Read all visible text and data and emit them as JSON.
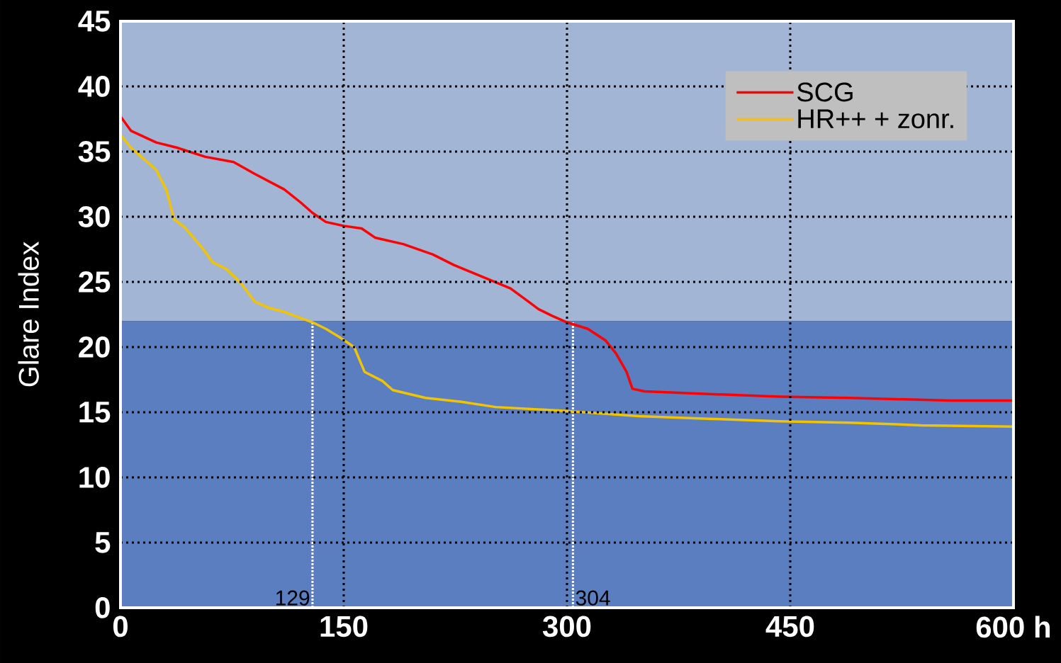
{
  "chart_data": {
    "type": "line",
    "ylabel": "Glare Index",
    "xlim": [
      0,
      600
    ],
    "ylim": [
      0,
      45
    ],
    "xticks": [
      0,
      150,
      300,
      450,
      {
        "value": 600,
        "label": "600 h"
      }
    ],
    "yticks": [
      0,
      5,
      10,
      15,
      20,
      25,
      30,
      35,
      40,
      45
    ],
    "grid": true,
    "legend": "top right",
    "bands": [
      {
        "axis": "y",
        "from": 0,
        "to": 22,
        "color": "#5a7ec0"
      },
      {
        "axis": "y",
        "from": 22,
        "to": 45,
        "color": "#a3b5d4"
      }
    ],
    "ref_lines": [
      {
        "axis": "x",
        "value": 129,
        "label": "129",
        "color": "#ffffff",
        "line_style": "dotted"
      },
      {
        "axis": "x",
        "value": 304,
        "label": "304",
        "color": "#ffffff",
        "line_style": "dotted"
      }
    ],
    "series": [
      {
        "name": "SCG",
        "color": "#ff0000",
        "x": [
          0,
          7,
          24,
          38,
          57,
          76,
          90,
          110,
          121,
          129,
          138,
          150,
          162,
          171,
          190,
          210,
          224,
          243,
          262,
          274,
          281,
          290,
          300,
          314,
          326,
          333,
          340,
          344,
          352,
          395,
          443,
          490,
          557,
          600
        ],
        "values": [
          37.7,
          36.6,
          35.7,
          35.3,
          34.6,
          34.2,
          33.3,
          32.1,
          31.1,
          30.3,
          29.6,
          29.3,
          29.1,
          28.4,
          27.9,
          27.1,
          26.3,
          25.4,
          24.5,
          23.5,
          22.9,
          22.4,
          21.9,
          21.4,
          20.5,
          19.5,
          18.1,
          16.8,
          16.6,
          16.4,
          16.2,
          16.1,
          15.9,
          15.9
        ]
      },
      {
        "name": "HR++  + zonr.",
        "color": "#f2c400",
        "x": [
          0,
          7,
          14,
          24,
          31,
          36,
          43,
          55,
          62,
          71,
          81,
          90,
          100,
          110,
          129,
          138,
          148,
          157,
          164,
          176,
          183,
          205,
          229,
          252,
          300,
          348,
          395,
          443,
          490,
          538,
          600
        ],
        "values": [
          36.3,
          35.3,
          34.6,
          33.6,
          32.0,
          29.8,
          29.2,
          27.6,
          26.5,
          26.0,
          24.9,
          23.5,
          23.0,
          22.7,
          21.9,
          21.4,
          20.7,
          20.0,
          18.1,
          17.4,
          16.7,
          16.1,
          15.8,
          15.4,
          15.1,
          14.7,
          14.5,
          14.3,
          14.2,
          14.0,
          13.9
        ]
      }
    ]
  }
}
